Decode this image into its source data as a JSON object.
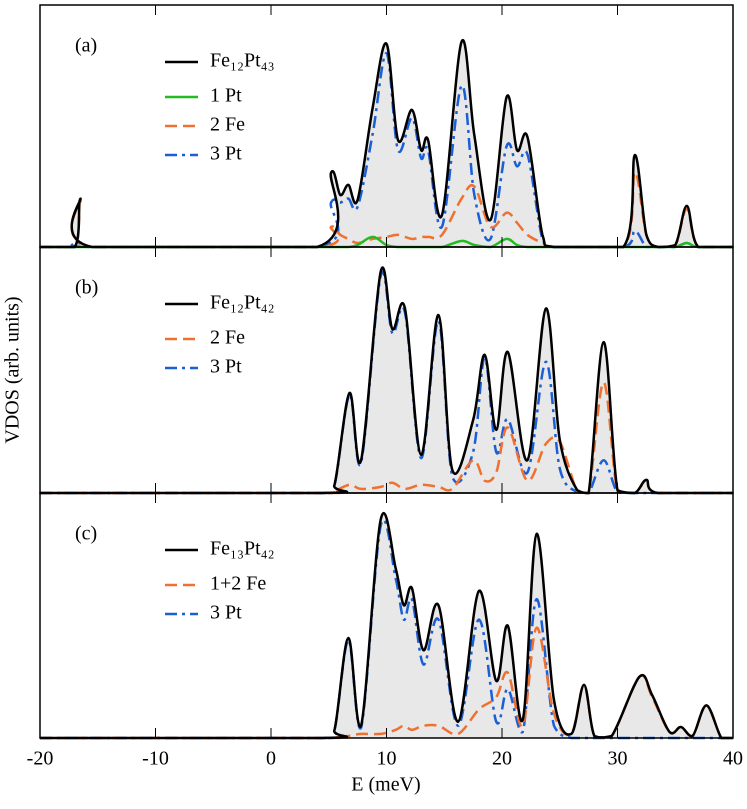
{
  "xlabel": "E (meV)",
  "ylabel": "VDOS (arb. units)",
  "chart_data": [
    {
      "type": "line",
      "panel_label": "(a)",
      "xlim": [
        -20,
        40
      ],
      "ylim": [
        0,
        6
      ],
      "xticks": [
        -20,
        -10,
        0,
        10,
        20,
        30,
        40
      ],
      "x": [
        -20,
        -17,
        -16.5,
        -15.5,
        4,
        5.2,
        6,
        6.7,
        7.5,
        8.8,
        10,
        11,
        12.2,
        13,
        13.6,
        14.8,
        16.5,
        17.6,
        19,
        20.4,
        21.3,
        22.2,
        23.5,
        24.5,
        30.5,
        31.5,
        32.5,
        33.5,
        35,
        36,
        37,
        40
      ],
      "series": [
        {
          "name": "Fe₁₂Pt₄₃",
          "color": "#000000",
          "dash": "solid",
          "fill": "#e8e8e8",
          "values": [
            0,
            0,
            1.2,
            0,
            0,
            1.84,
            1.29,
            1.54,
            1.17,
            3.45,
            5.04,
            2.65,
            3.4,
            2.4,
            2.65,
            0.79,
            5.09,
            2.78,
            0.67,
            3.72,
            2.4,
            2.73,
            0.3,
            0,
            0,
            2.28,
            0.3,
            0,
            0.05,
            1.02,
            0,
            0
          ]
        },
        {
          "name": "1 Pt",
          "color": "#22bb22",
          "dash": "solid",
          "values": [
            0,
            0,
            0,
            0,
            0,
            0,
            0,
            0,
            0.05,
            0.25,
            0.05,
            0,
            0,
            0,
            0,
            0,
            0.15,
            0.05,
            0,
            0.2,
            0.05,
            0,
            0,
            0,
            0,
            0,
            0,
            0,
            0,
            0.1,
            0,
            0
          ]
        },
        {
          "name": "2 Fe",
          "color": "#f07030",
          "dash": "dashed",
          "values": [
            0,
            0,
            1.15,
            0,
            0,
            0.5,
            0.3,
            0.2,
            0.1,
            0.2,
            0.25,
            0.3,
            0.2,
            0.25,
            0.25,
            0.3,
            1.2,
            1.5,
            0.5,
            0.85,
            0.6,
            0.3,
            0.1,
            0,
            0,
            1.85,
            0.3,
            0,
            0.05,
            0.95,
            0,
            0
          ]
        },
        {
          "name": "3 Pt",
          "color": "#1a5fd6",
          "dash": "dashdot",
          "values": [
            0,
            0,
            0.1,
            0,
            0,
            1.1,
            1.1,
            1.2,
            1.0,
            2.8,
            4.8,
            2.4,
            3.2,
            2.2,
            2.4,
            0.5,
            4.0,
            1.3,
            0.2,
            2.5,
            2.0,
            2.3,
            0.2,
            0,
            0,
            0.4,
            0,
            0,
            0,
            0.1,
            0,
            0
          ]
        }
      ]
    },
    {
      "type": "line",
      "panel_label": "(b)",
      "xlim": [
        -20,
        40
      ],
      "ylim": [
        0,
        6
      ],
      "xticks": [
        -20,
        -10,
        0,
        10,
        20,
        30,
        40
      ],
      "x": [
        -20,
        4.5,
        5.5,
        6.8,
        7.8,
        9.5,
        10.5,
        11.6,
        13,
        14.5,
        15.7,
        17.5,
        18.5,
        19.5,
        20.5,
        22.2,
        23.8,
        25,
        26.5,
        27.5,
        28.8,
        30,
        31.5,
        32.5,
        33.5,
        40
      ],
      "series": [
        {
          "name": "Fe₁₂Pt₄₂",
          "color": "#000000",
          "dash": "solid",
          "fill": "#e8e8e8",
          "values": [
            0,
            0,
            0.2,
            2.44,
            0.8,
            5.4,
            4.0,
            4.5,
            0.93,
            4.34,
            0.56,
            1.78,
            3.37,
            1.54,
            3.44,
            0.8,
            4.5,
            1.3,
            0.07,
            0,
            3.68,
            0.07,
            0,
            0.32,
            0,
            0
          ]
        },
        {
          "name": "2 Fe",
          "color": "#f07030",
          "dash": "dashed",
          "values": [
            0,
            0,
            0.05,
            0.2,
            0.1,
            0.15,
            0.25,
            0.1,
            0.2,
            0.15,
            0.1,
            0.8,
            0.3,
            0.5,
            1.6,
            0.3,
            1.2,
            1.25,
            0.05,
            0,
            2.7,
            0.05,
            0,
            0.3,
            0,
            0
          ]
        },
        {
          "name": "3 Pt",
          "color": "#1a5fd6",
          "dash": "dashdot",
          "values": [
            0,
            0,
            0.2,
            2.4,
            0.75,
            5.3,
            3.9,
            4.4,
            0.85,
            4.2,
            0.4,
            1.0,
            3.3,
            1.0,
            1.8,
            0.5,
            3.2,
            0.6,
            0.02,
            0,
            0.8,
            0.02,
            0,
            0,
            0,
            0
          ]
        }
      ]
    },
    {
      "type": "line",
      "panel_label": "(c)",
      "xlim": [
        -20,
        40
      ],
      "ylim": [
        0,
        6
      ],
      "xticks": [
        -20,
        -10,
        0,
        10,
        20,
        30,
        40
      ],
      "x": [
        -20,
        4.5,
        5.5,
        6.7,
        7.8,
        9.5,
        10.8,
        11.5,
        12.2,
        13.2,
        14.5,
        16.2,
        18,
        19.5,
        20.5,
        21.8,
        23,
        24.5,
        26,
        27.1,
        28,
        29.5,
        31.9,
        33,
        34.5,
        35.5,
        36.5,
        37.7,
        39,
        40
      ],
      "series": [
        {
          "name": "Fe₁₃Pt₄₂",
          "color": "#000000",
          "dash": "solid",
          "fill": "#e8e8e8",
          "values": [
            0,
            0,
            0.2,
            2.45,
            0.3,
            5.35,
            4.15,
            3.25,
            3.67,
            2.15,
            3.25,
            0.4,
            3.6,
            1.4,
            2.75,
            0.45,
            5.0,
            0.93,
            0.1,
            1.3,
            0.05,
            0.05,
            1.5,
            1.05,
            0.15,
            0.27,
            0.05,
            0.8,
            0,
            0
          ]
        },
        {
          "name": "1+2 Fe",
          "color": "#f07030",
          "dash": "dashed",
          "values": [
            0,
            0,
            0.02,
            0.05,
            0.1,
            0.1,
            0.2,
            0.3,
            0.2,
            0.3,
            0.3,
            0.1,
            0.7,
            1.0,
            1.6,
            0.3,
            2.7,
            0.6,
            0.1,
            1.3,
            0.05,
            0.05,
            1.5,
            1.0,
            0.15,
            0.27,
            0.05,
            0.8,
            0,
            0
          ]
        },
        {
          "name": "3 Pt",
          "color": "#1a5fd6",
          "dash": "dashdot",
          "values": [
            0,
            0,
            0.2,
            2.4,
            0.25,
            5.2,
            3.9,
            2.9,
            3.4,
            1.8,
            2.9,
            0.3,
            2.9,
            0.4,
            1.2,
            0.15,
            3.4,
            0.3,
            0,
            0,
            0,
            0,
            0,
            0,
            0,
            0,
            0,
            0,
            0,
            0
          ]
        }
      ]
    }
  ]
}
